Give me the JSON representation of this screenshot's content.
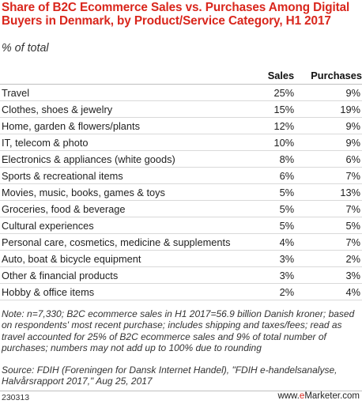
{
  "title": "Share of B2C Ecommerce Sales vs. Purchases Among Digital Buyers in Denmark, by Product/Service Category, H1 2017",
  "subtitle": "% of total",
  "columns": [
    "",
    "Sales",
    "Purchases"
  ],
  "chart_data": {
    "type": "table",
    "title": "Share of B2C Ecommerce Sales vs. Purchases Among Digital Buyers in Denmark, by Product/Service Category, H1 2017",
    "subtitle": "% of total",
    "categories": [
      "Travel",
      "Clothes, shoes & jewelry",
      "Home, garden & flowers/plants",
      "IT, telecom & photo",
      "Electronics & appliances (white goods)",
      "Sports & recreational items",
      "Movies, music, books, games & toys",
      "Groceries, food & beverage",
      "Cultural experiences",
      "Personal care, cosmetics, medicine & supplements",
      "Auto, boat & bicycle equipment",
      "Other & financial products",
      "Hobby & office items"
    ],
    "series": [
      {
        "name": "Sales",
        "values": [
          25,
          15,
          12,
          10,
          8,
          6,
          5,
          5,
          5,
          4,
          3,
          3,
          2
        ]
      },
      {
        "name": "Purchases",
        "values": [
          9,
          19,
          9,
          9,
          6,
          7,
          13,
          7,
          5,
          7,
          2,
          3,
          4
        ]
      }
    ],
    "value_suffix": "%"
  },
  "note": "Note: n=7,330; B2C ecommerce sales in H1 2017=56.9 billion Danish kroner; based on respondents' most recent purchase; includes shipping and taxes/fees; read as travel accounted for 25% of B2C ecommerce sales and 9% of total number of purchases; numbers may not add up to 100% due to rounding",
  "source": "Source: FDIH (Foreningen for Dansk Internet Handel), \"FDIH e-handelsanalyse, Halvårsrapport 2017,\" Aug 25, 2017",
  "footer": {
    "code": "230313",
    "brand_prefix": "www.",
    "brand_e": "e",
    "brand_rest": "Marketer",
    "brand_suffix": ".com"
  },
  "colors": {
    "title": "#d9261c",
    "brand_accent": "#d9261c"
  }
}
